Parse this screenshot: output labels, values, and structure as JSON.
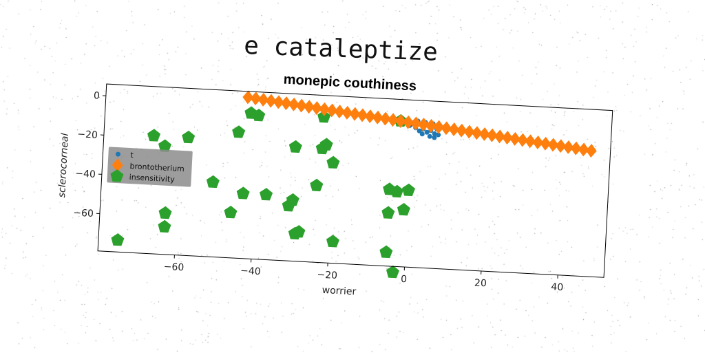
{
  "suptitle": "e cataleptize",
  "chart_data": {
    "type": "scatter",
    "title": "monepic couthiness",
    "xlabel": "worrier",
    "ylabel": "sclerocorneal",
    "xlim": [
      -80,
      52
    ],
    "ylim": [
      -79,
      6
    ],
    "xticks": [
      -60,
      -40,
      -20,
      0,
      20,
      40
    ],
    "yticks": [
      0,
      -20,
      -40,
      -60
    ],
    "grid": false,
    "legend": "left",
    "series": [
      {
        "name": "t",
        "color": "#1f77b4",
        "marker": "circle",
        "points": [
          [
            0.2,
            -5.5
          ],
          [
            1.5,
            -4.5
          ],
          [
            2.5,
            -6.5
          ],
          [
            3.5,
            -5.0
          ],
          [
            4.5,
            -7.0
          ],
          [
            5.5,
            -5.5
          ],
          [
            1.0,
            -8.0
          ],
          [
            2.0,
            -9.5
          ],
          [
            3.0,
            -8.5
          ],
          [
            4.0,
            -10.0
          ],
          [
            5.0,
            -9.0
          ],
          [
            6.0,
            -10.5
          ],
          [
            6.5,
            -8.0
          ],
          [
            7.0,
            -11.0
          ],
          [
            -0.5,
            -7.0
          ],
          [
            2.8,
            -11.0
          ],
          [
            4.8,
            -12.0
          ],
          [
            6.0,
            -12.5
          ]
        ]
      },
      {
        "name": "brontotherium",
        "color": "#ff7f0e",
        "marker": "diamond",
        "points": [
          [
            -43,
            3.0
          ],
          [
            -41,
            2.6
          ],
          [
            -39,
            2.2
          ],
          [
            -37,
            1.8
          ],
          [
            -35,
            1.4
          ],
          [
            -33,
            1.0
          ],
          [
            -31,
            0.6
          ],
          [
            -29,
            0.2
          ],
          [
            -27,
            -0.2
          ],
          [
            -25,
            -0.6
          ],
          [
            -23,
            -1.0
          ],
          [
            -21,
            -1.4
          ],
          [
            -19,
            -1.8
          ],
          [
            -17,
            -2.2
          ],
          [
            -15,
            -2.6
          ],
          [
            -13,
            -3.0
          ],
          [
            -11,
            -3.4
          ],
          [
            -9,
            -3.8
          ],
          [
            -7,
            -4.2
          ],
          [
            -5,
            -4.6
          ],
          [
            -3,
            -5.0
          ],
          [
            -1,
            -5.4
          ],
          [
            1,
            -5.8
          ],
          [
            3,
            -6.2
          ],
          [
            5,
            -6.6
          ],
          [
            7,
            -7.0
          ],
          [
            9,
            -7.4
          ],
          [
            11,
            -7.8
          ],
          [
            13,
            -8.2
          ],
          [
            15,
            -8.6
          ],
          [
            17,
            -9.0
          ],
          [
            19,
            -9.4
          ],
          [
            21,
            -9.8
          ],
          [
            23,
            -10.2
          ],
          [
            25,
            -10.6
          ],
          [
            27,
            -11.0
          ],
          [
            29,
            -11.4
          ],
          [
            31,
            -11.8
          ],
          [
            33,
            -12.2
          ],
          [
            35,
            -12.6
          ],
          [
            37,
            -13.0
          ],
          [
            39,
            -13.4
          ],
          [
            41,
            -13.8
          ],
          [
            43,
            -14.2
          ],
          [
            45,
            -14.6
          ],
          [
            47,
            -15.0
          ]
        ]
      },
      {
        "name": "insensitivity",
        "color": "#2ca02c",
        "marker": "pentagon",
        "points": [
          [
            -42,
            -5
          ],
          [
            -40,
            -6
          ],
          [
            -23,
            -5
          ],
          [
            -3,
            -5
          ],
          [
            -45,
            -15
          ],
          [
            -67,
            -19
          ],
          [
            -64,
            -24
          ],
          [
            -58,
            -19
          ],
          [
            -30,
            -21
          ],
          [
            -23,
            -21
          ],
          [
            -22,
            -19
          ],
          [
            -20,
            -28
          ],
          [
            -51,
            -41
          ],
          [
            -43,
            -46
          ],
          [
            -37,
            -46
          ],
          [
            -30,
            -48
          ],
          [
            -31,
            -51
          ],
          [
            -24,
            -40
          ],
          [
            -5,
            -40
          ],
          [
            -3,
            -41
          ],
          [
            0,
            -40
          ],
          [
            -46,
            -56
          ],
          [
            -63,
            -58
          ],
          [
            -63,
            -65
          ],
          [
            -29,
            -65
          ],
          [
            -28,
            -64
          ],
          [
            -19,
            -68
          ],
          [
            -5,
            -52
          ],
          [
            -1,
            -50
          ],
          [
            -5,
            -72
          ],
          [
            -75,
            -73
          ],
          [
            -3,
            -82
          ]
        ]
      }
    ]
  }
}
